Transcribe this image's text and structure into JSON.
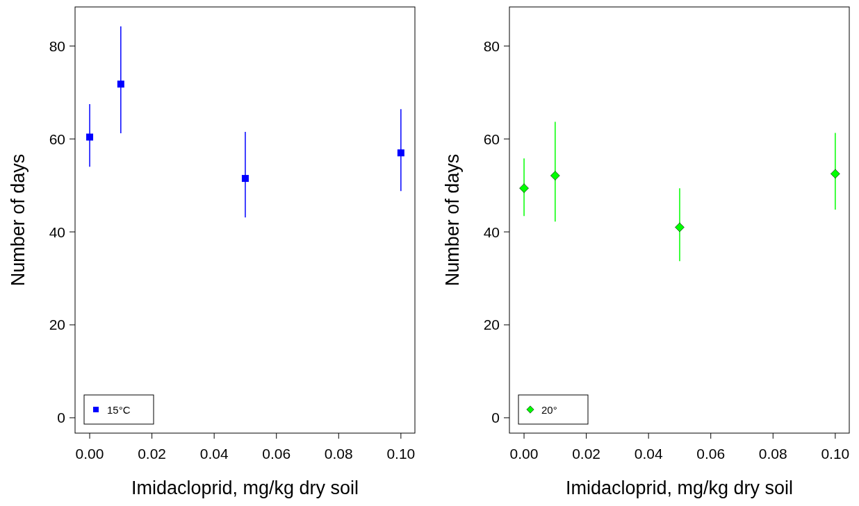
{
  "chart_data": [
    {
      "type": "scatter",
      "xlabel": "Imidacloprid, mg/kg dry soil",
      "ylabel": "Number of days",
      "x": [
        0,
        0.01,
        0.05,
        0.1
      ],
      "xlim": [
        -0.0047,
        0.1045
      ],
      "xticks": [
        {
          "value": 0,
          "label": "0.00"
        },
        {
          "value": 0.02,
          "label": "0.02"
        },
        {
          "value": 0.04,
          "label": "0.04"
        },
        {
          "value": 0.06,
          "label": "0.06"
        },
        {
          "value": 0.08,
          "label": "0.08"
        },
        {
          "value": 0.1,
          "label": "0.10"
        }
      ],
      "ylim": [
        -3.3,
        88.4
      ],
      "yticks": [
        0,
        20,
        40,
        60,
        80
      ],
      "legend": "bottom left",
      "grid": false,
      "marker": "square",
      "series": [
        {
          "name": "15°C",
          "color": "#0000ff",
          "values": [
            60.4,
            71.8,
            51.5,
            57.0
          ],
          "errors": [
            [
              54.0,
              67.5
            ],
            [
              61.2,
              84.2
            ],
            [
              43.1,
              61.5
            ],
            [
              48.8,
              66.4
            ]
          ]
        }
      ]
    },
    {
      "type": "scatter",
      "xlabel": "Imidacloprid, mg/kg dry soil",
      "ylabel": "Number of days",
      "x": [
        0,
        0.01,
        0.05,
        0.1
      ],
      "xlim": [
        -0.0047,
        0.1045
      ],
      "xticks": [
        {
          "value": 0,
          "label": "0.00"
        },
        {
          "value": 0.02,
          "label": "0.02"
        },
        {
          "value": 0.04,
          "label": "0.04"
        },
        {
          "value": 0.06,
          "label": "0.06"
        },
        {
          "value": 0.08,
          "label": "0.08"
        },
        {
          "value": 0.1,
          "label": "0.10"
        }
      ],
      "ylim": [
        -3.3,
        88.4
      ],
      "yticks": [
        0,
        20,
        40,
        60,
        80
      ],
      "legend": "bottom left",
      "grid": false,
      "marker": "diamond",
      "series": [
        {
          "name": "20°",
          "color": "#00ff00",
          "values": [
            49.4,
            52.1,
            41.0,
            52.5
          ],
          "errors": [
            [
              43.4,
              55.8
            ],
            [
              42.2,
              63.7
            ],
            [
              33.7,
              49.4
            ],
            [
              44.8,
              61.3
            ]
          ]
        }
      ]
    }
  ]
}
